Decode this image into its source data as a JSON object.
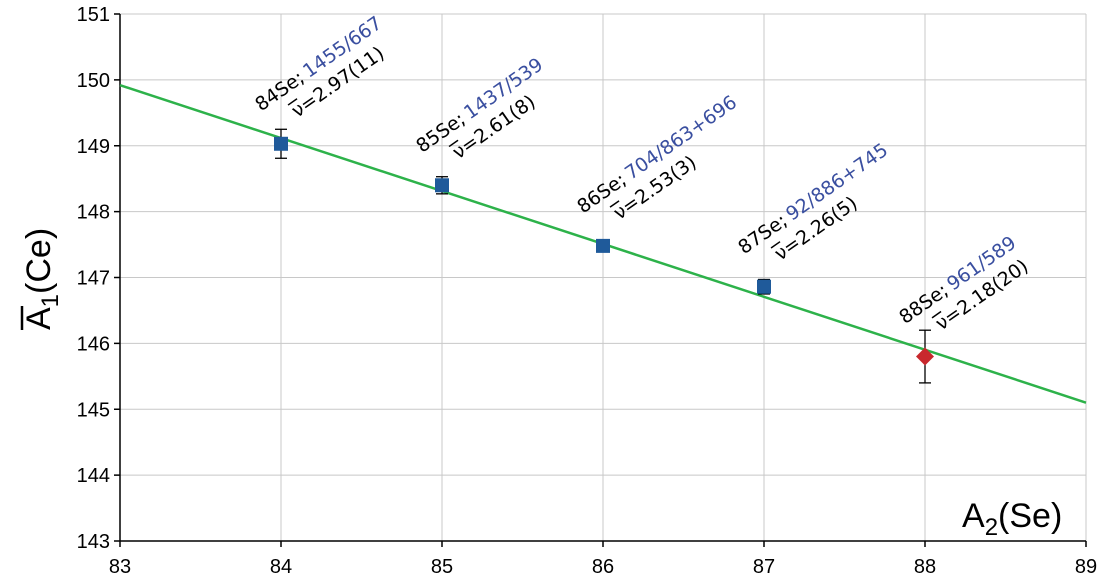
{
  "chart_data": {
    "type": "scatter",
    "xlabel": {
      "main": "A",
      "sub": "2",
      "rest": "(Se)"
    },
    "ylabel": {
      "main": "A",
      "sub": "1",
      "rest": "(Ce)"
    },
    "xlim": [
      83,
      89
    ],
    "ylim": [
      143,
      151
    ],
    "xticks": [
      "83",
      "84",
      "85",
      "86",
      "87",
      "88",
      "89"
    ],
    "yticks": [
      "143",
      "144",
      "145",
      "146",
      "147",
      "148",
      "149",
      "150",
      "151"
    ],
    "grid": true,
    "points": [
      {
        "x": 84,
        "y": 149.03,
        "err": 0.22,
        "marker": "square",
        "color": "#1f5a9a",
        "nuclide": "84Se;",
        "ratio": "1455/667",
        "nu": "=2.97(11)"
      },
      {
        "x": 85,
        "y": 148.4,
        "err": 0.13,
        "marker": "square",
        "color": "#1f5a9a",
        "nuclide": "85Se;",
        "ratio": "1437/539",
        "nu": "=2.61(8)"
      },
      {
        "x": 86,
        "y": 147.48,
        "err": 0.05,
        "marker": "square",
        "color": "#1f5a9a",
        "nuclide": "86Se;",
        "ratio": "704/863+696",
        "nu": "=2.53(3)"
      },
      {
        "x": 87,
        "y": 146.86,
        "err": 0.11,
        "marker": "square",
        "color": "#1f5a9a",
        "nuclide": "87Se;",
        "ratio": "92/886+745",
        "nu": "=2.26(5)"
      },
      {
        "x": 88,
        "y": 145.8,
        "err": 0.4,
        "marker": "diamond",
        "color": "#c8282d",
        "nuclide": "88Se;",
        "ratio": "961/589",
        "nu": "=2.18(20)"
      }
    ],
    "fit_line": {
      "x": [
        83,
        89
      ],
      "y": [
        149.92,
        145.1
      ],
      "color": "#2db24a"
    },
    "colors": {
      "ratio_text": "#3a4fa0",
      "grid": "#c8c8c8"
    }
  }
}
